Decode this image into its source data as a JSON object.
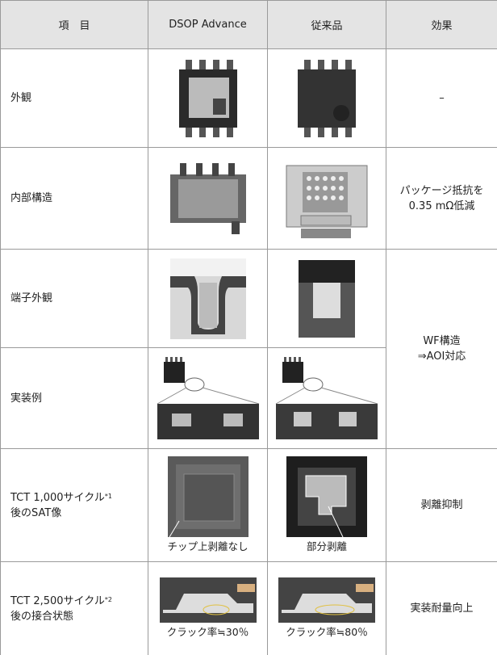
{
  "table": {
    "header": [
      "項　目",
      "DSOP Advance",
      "従来品",
      "効果"
    ],
    "rows": [
      {
        "item": [
          "外観"
        ],
        "effect": [
          "–"
        ]
      },
      {
        "item": [
          "内部構造"
        ],
        "effect": [
          "パッケージ抵抗を",
          "0.35 mΩ低減"
        ]
      },
      {
        "item": [
          "端子外観"
        ],
        "effect": [
          "WF構造",
          "⇒AOI対応"
        ]
      },
      {
        "item": [
          "実装例"
        ]
      },
      {
        "item": [
          "TCT 1,000サイクル",
          "後のSAT像"
        ],
        "note": "*1",
        "effect": [
          "剥離抑制"
        ],
        "captions": [
          "チップ上剥離なし",
          "部分剥離"
        ]
      },
      {
        "item": [
          "TCT 2,500サイクル",
          "後の接合状態"
        ],
        "note": "*2",
        "effect": [
          "実装耐量向上"
        ],
        "captions": [
          "クラック率≒30％",
          "クラック率≒80％"
        ]
      }
    ]
  }
}
